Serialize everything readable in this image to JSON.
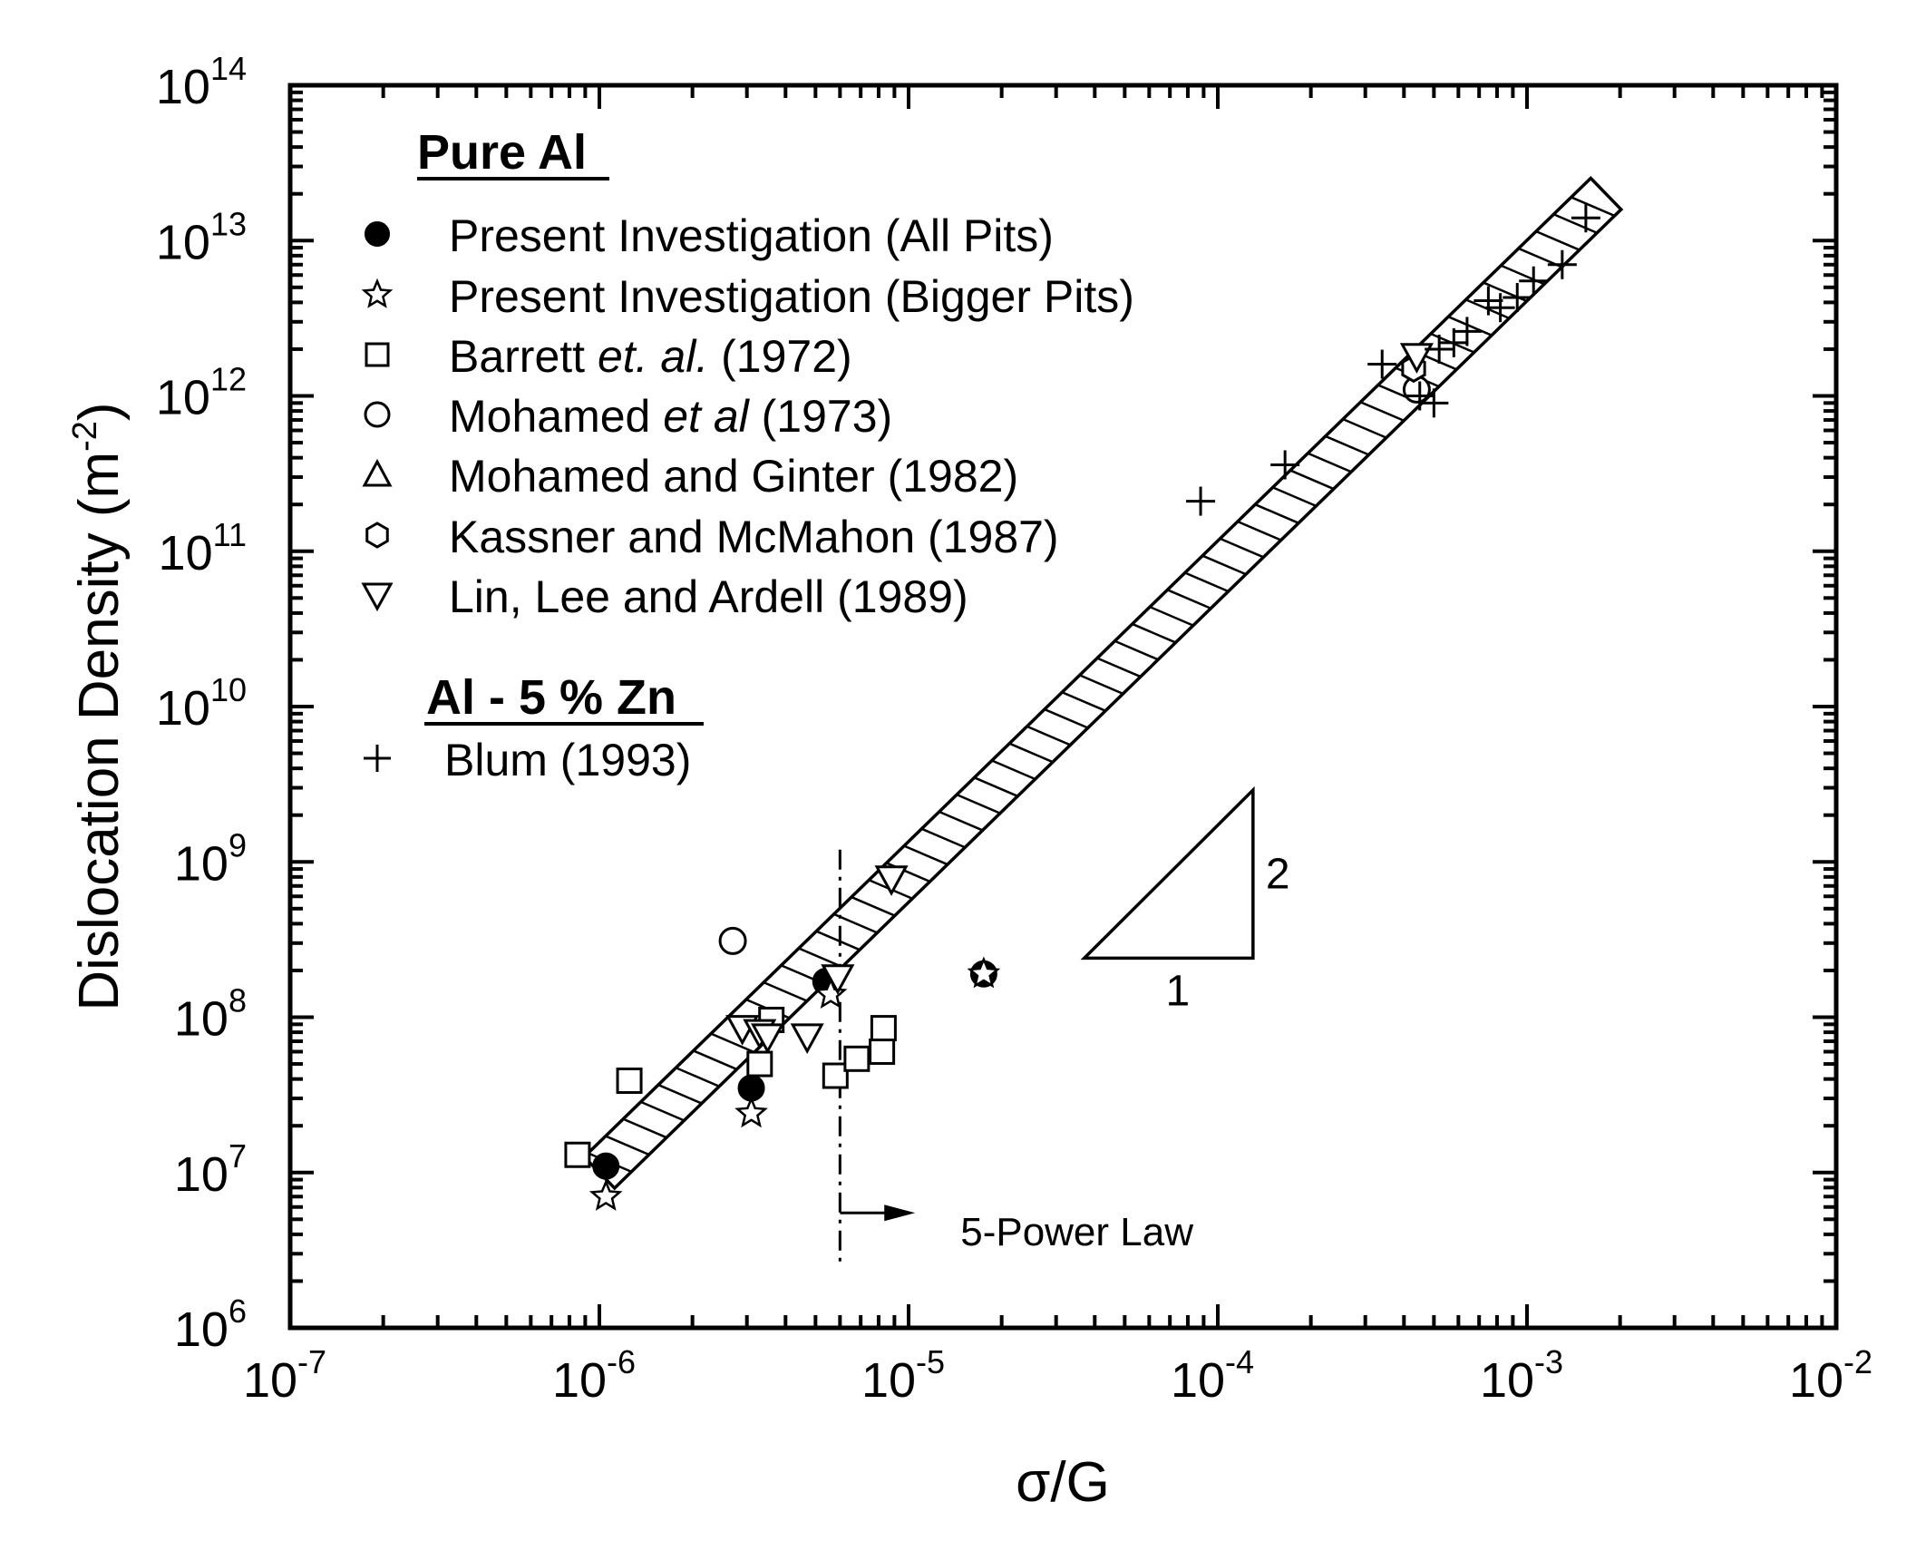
{
  "chart_data": {
    "type": "scatter",
    "xscale": "log",
    "yscale": "log",
    "xlim": [
      1e-07,
      0.01
    ],
    "ylim": [
      1000000.0,
      100000000000000.0
    ],
    "xlabel": "σ/G",
    "ylabel_main": "Dislocation Density (m",
    "ylabel_sup": "-2",
    "ylabel_close": ")",
    "x_ticks": [
      {
        "value": 1e-07,
        "base": "10",
        "exp": "-7"
      },
      {
        "value": 1e-06,
        "base": "10",
        "exp": "-6"
      },
      {
        "value": 1e-05,
        "base": "10",
        "exp": "-5"
      },
      {
        "value": 0.0001,
        "base": "10",
        "exp": "-4"
      },
      {
        "value": 0.001,
        "base": "10",
        "exp": "-3"
      },
      {
        "value": 0.01,
        "base": "10",
        "exp": "-2"
      }
    ],
    "y_ticks": [
      {
        "value": 1000000.0,
        "base": "10",
        "exp": "6"
      },
      {
        "value": 10000000.0,
        "base": "10",
        "exp": "7"
      },
      {
        "value": 100000000.0,
        "base": "10",
        "exp": "8"
      },
      {
        "value": 1000000000.0,
        "base": "10",
        "exp": "9"
      },
      {
        "value": 10000000000.0,
        "base": "10",
        "exp": "10"
      },
      {
        "value": 100000000000.0,
        "base": "10",
        "exp": "11"
      },
      {
        "value": 1000000000000.0,
        "base": "10",
        "exp": "12"
      },
      {
        "value": 10000000000000.0,
        "base": "10",
        "exp": "13"
      },
      {
        "value": 100000000000000.0,
        "base": "10",
        "exp": "14"
      }
    ],
    "legend": {
      "placement": "top-left",
      "group1_title": "Pure Al",
      "group2_title": "Al - 5 % Zn",
      "entries": [
        {
          "marker": "filled-circle",
          "text": "Present Investigation (All Pits)"
        },
        {
          "marker": "star",
          "text": "Present Investigation (Bigger Pits)"
        },
        {
          "marker": "square",
          "text_a": "Barrett ",
          "text_i": "et. al.",
          "text_b": " (1972)"
        },
        {
          "marker": "circle",
          "text_a": "Mohamed ",
          "text_i": "et al",
          "text_b": " (1973)"
        },
        {
          "marker": "triangle-up",
          "text": "Mohamed and Ginter (1982)"
        },
        {
          "marker": "hexagon",
          "text": "Kassner and McMahon (1987)"
        },
        {
          "marker": "triangle-down",
          "text": "Lin, Lee and Ardell (1989)"
        },
        {
          "marker": "plus",
          "text": "Blum (1993)"
        }
      ]
    },
    "band": {
      "description": "hatched slope-2 band",
      "from": [
        1e-06,
        10000000.0
      ],
      "to": [
        0.0018,
        20000000000000.0
      ]
    },
    "slope_triangle": {
      "run_label": "1",
      "rise_label": "2",
      "x": [
        3.7e-05,
        0.00013
      ],
      "y": [
        240000000.0,
        2900000000.0
      ]
    },
    "five_power_law": {
      "x": 6e-06,
      "label": "5-Power Law",
      "y_range": [
        2500000.0,
        1200000000.0
      ],
      "arrow_y": 5500000.0,
      "arrow_to_x": 1.05e-05
    },
    "series": [
      {
        "name": "Present Investigation (All Pits)",
        "marker": "filled-circle",
        "points": [
          [
            1.05e-06,
            11000000.0
          ],
          [
            3.1e-06,
            35000000.0
          ],
          [
            5.4e-06,
            170000000.0
          ],
          [
            1.75e-05,
            190000000.0
          ]
        ]
      },
      {
        "name": "Present Investigation (Bigger Pits)",
        "marker": "star",
        "points": [
          [
            1.05e-06,
            7000000.0
          ],
          [
            3.1e-06,
            24000000.0
          ],
          [
            5.6e-06,
            140000000.0
          ],
          [
            1.75e-05,
            190000000.0
          ]
        ]
      },
      {
        "name": "Barrett et. al. (1972)",
        "marker": "square",
        "points": [
          [
            8.5e-07,
            13000000.0
          ],
          [
            1.25e-06,
            39000000.0
          ],
          [
            3.3e-06,
            50000000.0
          ],
          [
            3.6e-06,
            96000000.0
          ],
          [
            5.8e-06,
            42000000.0
          ],
          [
            6.8e-06,
            54000000.0
          ],
          [
            8.2e-06,
            60000000.0
          ],
          [
            8.3e-06,
            85000000.0
          ]
        ]
      },
      {
        "name": "Mohamed et al (1973)",
        "marker": "circle",
        "points": [
          [
            2.7e-06,
            310000000.0
          ],
          [
            0.00044,
            1100000000000.0
          ]
        ]
      },
      {
        "name": "Mohamed and Ginter (1982)",
        "marker": "triangle-up",
        "points": []
      },
      {
        "name": "Kassner and McMahon (1987)",
        "marker": "hexagon",
        "points": [
          [
            0.00043,
            1500000000000.0
          ]
        ]
      },
      {
        "name": "Lin, Lee and Ardell (1989)",
        "marker": "triangle-down",
        "points": [
          [
            2.9e-06,
            85000000.0
          ],
          [
            3.3e-06,
            80000000.0
          ],
          [
            3.5e-06,
            75000000.0
          ],
          [
            4.7e-06,
            75000000.0
          ],
          [
            5.9e-06,
            180000000.0
          ],
          [
            8.8e-06,
            780000000.0
          ],
          [
            0.00044,
            1800000000000.0
          ]
        ]
      },
      {
        "name": "Blum (1993)",
        "marker": "plus",
        "points": [
          [
            8.8e-05,
            210000000000.0
          ],
          [
            0.000165,
            360000000000.0
          ],
          [
            0.00034,
            1600000000000.0
          ],
          [
            0.00045,
            1000000000000.0
          ],
          [
            0.0005,
            900000000000.0
          ],
          [
            0.00052,
            2000000000000.0
          ],
          [
            0.00058,
            2200000000000.0
          ],
          [
            0.00064,
            2600000000000.0
          ],
          [
            0.00075,
            4100000000000.0
          ],
          [
            0.00082,
            3700000000000.0
          ],
          [
            0.00093,
            4300000000000.0
          ],
          [
            0.00105,
            5500000000000.0
          ],
          [
            0.0013,
            7000000000000.0
          ],
          [
            0.00155,
            14000000000000.0
          ]
        ]
      }
    ]
  }
}
